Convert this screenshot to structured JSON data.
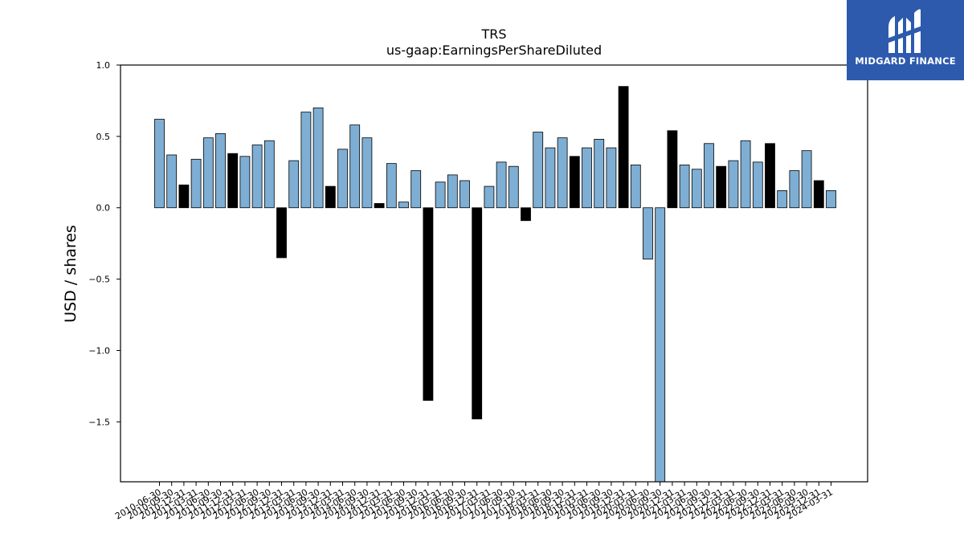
{
  "chart_data": {
    "type": "bar",
    "title": "TRS",
    "subtitle": "us-gaap:EarningsPerShareDiluted",
    "ylabel": "USD / shares",
    "xlabel": "",
    "ylim": [
      -1.92,
      1.0
    ],
    "yticks": [
      1.0,
      0.5,
      0.0,
      -0.5,
      -1.0,
      -1.5
    ],
    "ytick_labels": [
      "1.0",
      "0.5",
      "0.0",
      "−0.5",
      "−1.0",
      "−1.5"
    ],
    "grid": false,
    "colors": {
      "quarter": "#7eaed3",
      "annual": "#000000",
      "edge": "#000000"
    },
    "categories": [
      "2010-06-30",
      "2010-09-30",
      "2010-12-31",
      "2011-03-31",
      "2011-06-30",
      "2011-09-30",
      "2011-12-31",
      "2012-03-31",
      "2012-06-30",
      "2012-09-30",
      "2012-12-31",
      "2013-03-31",
      "2013-06-30",
      "2013-09-30",
      "2013-12-31",
      "2014-03-31",
      "2014-06-30",
      "2014-09-30",
      "2014-12-31",
      "2015-03-31",
      "2015-06-30",
      "2015-09-30",
      "2015-12-31",
      "2016-03-31",
      "2016-06-30",
      "2016-09-30",
      "2016-12-31",
      "2017-03-31",
      "2017-06-30",
      "2017-09-30",
      "2017-12-31",
      "2018-03-31",
      "2018-06-30",
      "2018-09-30",
      "2018-12-31",
      "2019-03-31",
      "2019-06-30",
      "2019-09-30",
      "2019-12-31",
      "2020-03-31",
      "2020-06-30",
      "2020-09-30",
      "2020-12-31",
      "2021-03-31",
      "2021-06-30",
      "2021-09-30",
      "2021-12-31",
      "2022-03-31",
      "2022-06-30",
      "2022-09-30",
      "2022-12-31",
      "2023-03-31",
      "2023-06-30",
      "2023-09-30",
      "2023-12-31",
      "2024-03-31"
    ],
    "values": [
      0.62,
      0.37,
      0.16,
      0.34,
      0.49,
      0.52,
      0.38,
      0.36,
      0.44,
      0.47,
      -0.35,
      0.33,
      0.67,
      0.7,
      0.15,
      0.41,
      0.58,
      0.49,
      0.03,
      0.31,
      0.04,
      0.26,
      -1.35,
      0.18,
      0.23,
      0.19,
      -1.48,
      0.15,
      0.32,
      0.29,
      -0.09,
      0.53,
      0.42,
      0.49,
      0.36,
      0.42,
      0.48,
      0.42,
      0.85,
      0.3,
      -0.36,
      -1.92,
      0.54,
      0.3,
      0.27,
      0.45,
      0.29,
      0.33,
      0.47,
      0.32,
      0.45,
      0.12,
      0.26,
      0.4,
      0.19,
      0.12
    ],
    "annual": [
      false,
      false,
      true,
      false,
      false,
      false,
      true,
      false,
      false,
      false,
      true,
      false,
      false,
      false,
      true,
      false,
      false,
      false,
      true,
      false,
      false,
      false,
      true,
      false,
      false,
      false,
      true,
      false,
      false,
      false,
      true,
      false,
      false,
      false,
      true,
      false,
      false,
      false,
      true,
      false,
      false,
      false,
      true,
      false,
      false,
      false,
      true,
      false,
      false,
      false,
      true,
      false,
      false,
      false,
      true,
      false
    ]
  },
  "logo": {
    "text": "MIDGARD FINANCE",
    "background": "#2d5aad"
  }
}
